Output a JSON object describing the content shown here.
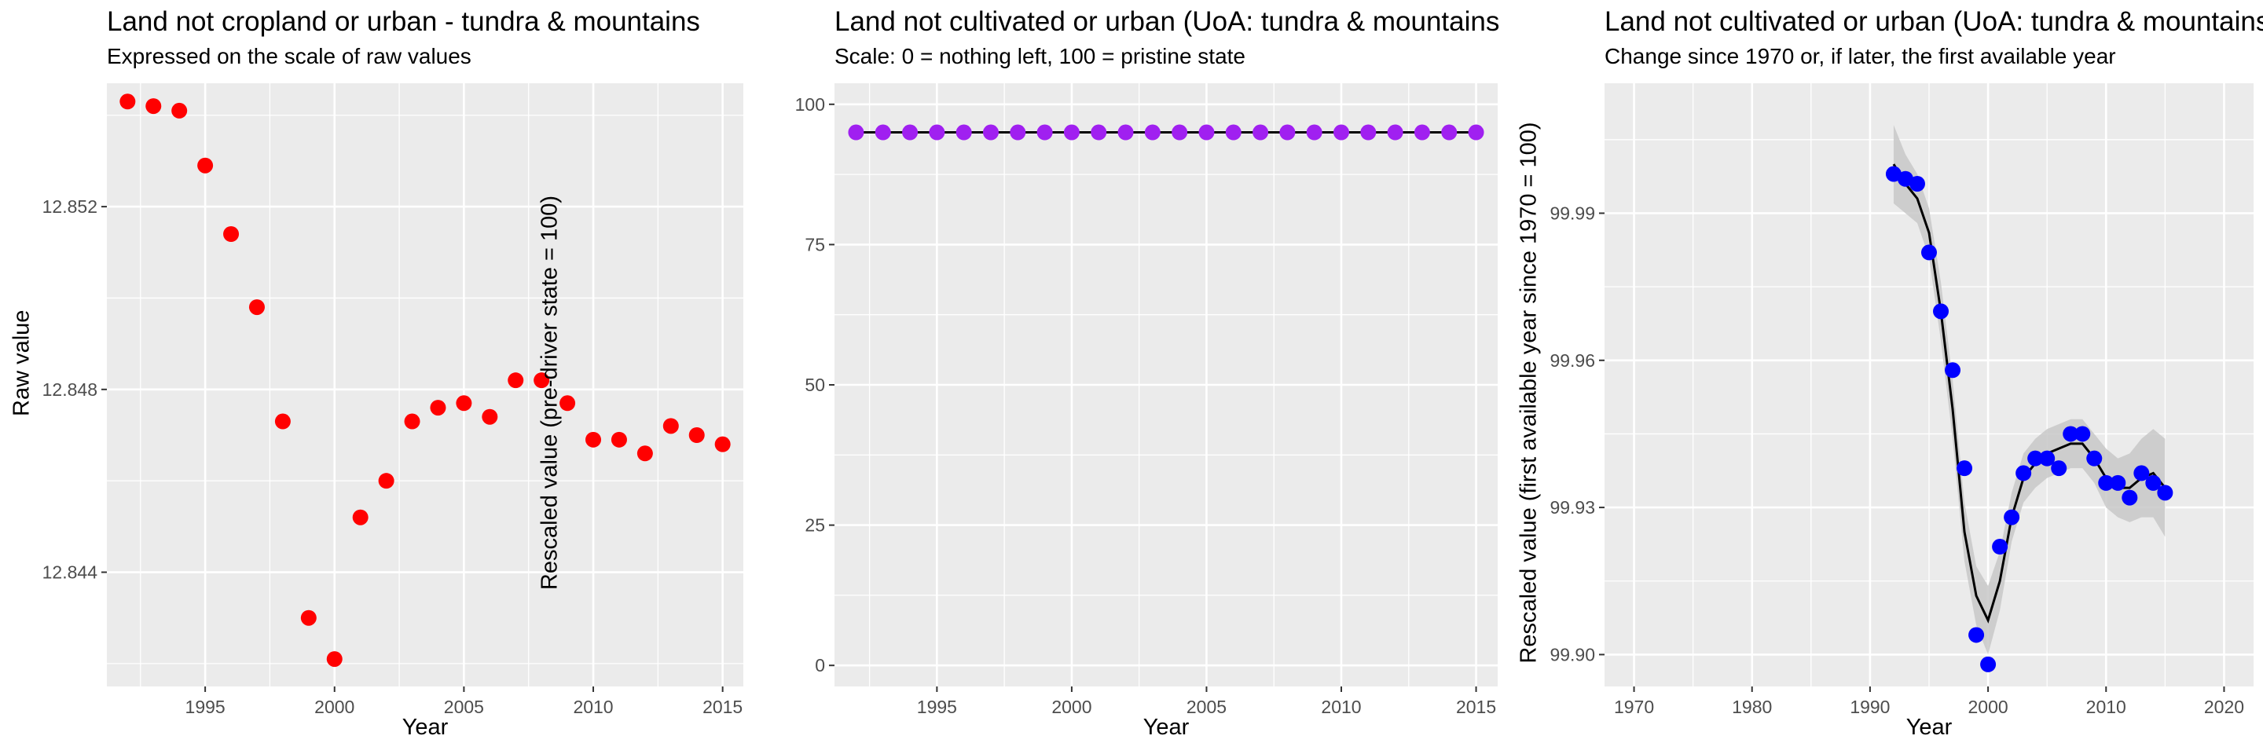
{
  "colors": {
    "panel_bg": "#ebebeb",
    "grid": "#ffffff",
    "tick_text": "#4d4d4d"
  },
  "chart_data": [
    {
      "type": "scatter",
      "title": "Land not cropland or urban - tundra & mountains",
      "subtitle": "Expressed on the scale of raw values",
      "xlabel": "Year",
      "ylabel": "Raw value",
      "point_color": "#ff0000",
      "xlim": [
        1991.2,
        2015.8
      ],
      "ylim": [
        12.8415,
        12.8547
      ],
      "x_ticks": [
        1995,
        2000,
        2005,
        2010,
        2015
      ],
      "y_ticks": [
        12.844,
        12.848,
        12.852
      ],
      "y_tick_labels": [
        "12.844",
        "12.848",
        "12.852"
      ],
      "grid": true,
      "x": [
        1992,
        1993,
        1994,
        1995,
        1996,
        1997,
        1998,
        1999,
        2000,
        2001,
        2002,
        2003,
        2004,
        2005,
        2006,
        2007,
        2008,
        2009,
        2010,
        2011,
        2012,
        2013,
        2014,
        2015
      ],
      "y": [
        12.8543,
        12.8542,
        12.8541,
        12.8529,
        12.8514,
        12.8498,
        12.8473,
        12.843,
        12.8421,
        12.8452,
        12.846,
        12.8473,
        12.8476,
        12.8477,
        12.8474,
        12.8482,
        12.8482,
        12.8477,
        12.8469,
        12.8469,
        12.8466,
        12.8472,
        12.847,
        12.8468
      ]
    },
    {
      "type": "line",
      "title": "Land not cultivated or urban (UoA: tundra & mountains",
      "subtitle": "Scale: 0 = nothing left, 100 = pristine state",
      "xlabel": "Year",
      "ylabel": "Rescaled value (pre-driver state = 100)",
      "point_color": "#a020f0",
      "line_color": "#000000",
      "xlim": [
        1991.2,
        2015.8
      ],
      "ylim": [
        -3.75,
        103.75
      ],
      "x_ticks": [
        1995,
        2000,
        2005,
        2010,
        2015
      ],
      "y_ticks": [
        0,
        25,
        50,
        75,
        100
      ],
      "y_tick_labels": [
        "0",
        "25",
        "50",
        "75",
        "100"
      ],
      "grid": true,
      "x": [
        1992,
        1993,
        1994,
        1995,
        1996,
        1997,
        1998,
        1999,
        2000,
        2001,
        2002,
        2003,
        2004,
        2005,
        2006,
        2007,
        2008,
        2009,
        2010,
        2011,
        2012,
        2013,
        2014,
        2015
      ],
      "y": [
        95,
        95,
        95,
        95,
        95,
        95,
        95,
        95,
        95,
        95,
        95,
        95,
        95,
        95,
        95,
        95,
        95,
        95,
        95,
        95,
        95,
        95,
        95,
        95
      ]
    },
    {
      "type": "scatter",
      "title": "Land not cultivated or urban (UoA: tundra & mountains",
      "subtitle": "Change since 1970 or, if later, the first available year",
      "xlabel": "Year",
      "ylabel": "Rescaled value (first available year since 1970 = 100)",
      "point_color": "#0000ff",
      "line_color": "#000000",
      "band_color": "#c8c8c8",
      "xlim": [
        1967.5,
        2022.5
      ],
      "ylim": [
        99.8935,
        100.0165
      ],
      "x_ticks": [
        1970,
        1980,
        1990,
        2000,
        2010,
        2020
      ],
      "y_ticks": [
        99.9,
        99.93,
        99.96,
        99.99
      ],
      "y_tick_labels": [
        "99.90",
        "99.93",
        "99.96",
        "99.99"
      ],
      "grid": true,
      "x": [
        1992,
        1993,
        1994,
        1995,
        1996,
        1997,
        1998,
        1999,
        2000,
        2001,
        2002,
        2003,
        2004,
        2005,
        2006,
        2007,
        2008,
        2009,
        2010,
        2011,
        2012,
        2013,
        2014,
        2015
      ],
      "y": [
        99.998,
        99.997,
        99.996,
        99.982,
        99.97,
        99.958,
        99.938,
        99.904,
        99.898,
        99.922,
        99.928,
        99.937,
        99.94,
        99.94,
        99.938,
        99.945,
        99.945,
        99.94,
        99.935,
        99.935,
        99.932,
        99.937,
        99.935,
        99.933
      ],
      "smooth_x": [
        1992,
        1993,
        1994,
        1995,
        1996,
        1997,
        1998,
        1999,
        2000,
        2001,
        2002,
        2003,
        2004,
        2005,
        2006,
        2007,
        2008,
        2009,
        2010,
        2011,
        2012,
        2013,
        2014,
        2015
      ],
      "smooth_y": [
        100.0,
        99.996,
        99.993,
        99.986,
        99.97,
        99.95,
        99.925,
        99.912,
        99.907,
        99.915,
        99.928,
        99.936,
        99.939,
        99.941,
        99.942,
        99.943,
        99.943,
        99.94,
        99.936,
        99.934,
        99.934,
        99.936,
        99.937,
        99.934
      ],
      "band_lower": [
        99.992,
        99.99,
        99.988,
        99.981,
        99.964,
        99.944,
        99.919,
        99.906,
        99.9,
        99.909,
        99.923,
        99.931,
        99.934,
        99.936,
        99.937,
        99.938,
        99.938,
        99.935,
        99.93,
        99.928,
        99.927,
        99.928,
        99.928,
        99.924
      ],
      "band_upper": [
        100.008,
        100.002,
        99.998,
        99.991,
        99.976,
        99.956,
        99.931,
        99.918,
        99.914,
        99.921,
        99.933,
        99.941,
        99.944,
        99.946,
        99.947,
        99.948,
        99.948,
        99.945,
        99.942,
        99.94,
        99.941,
        99.944,
        99.946,
        99.944
      ]
    }
  ]
}
